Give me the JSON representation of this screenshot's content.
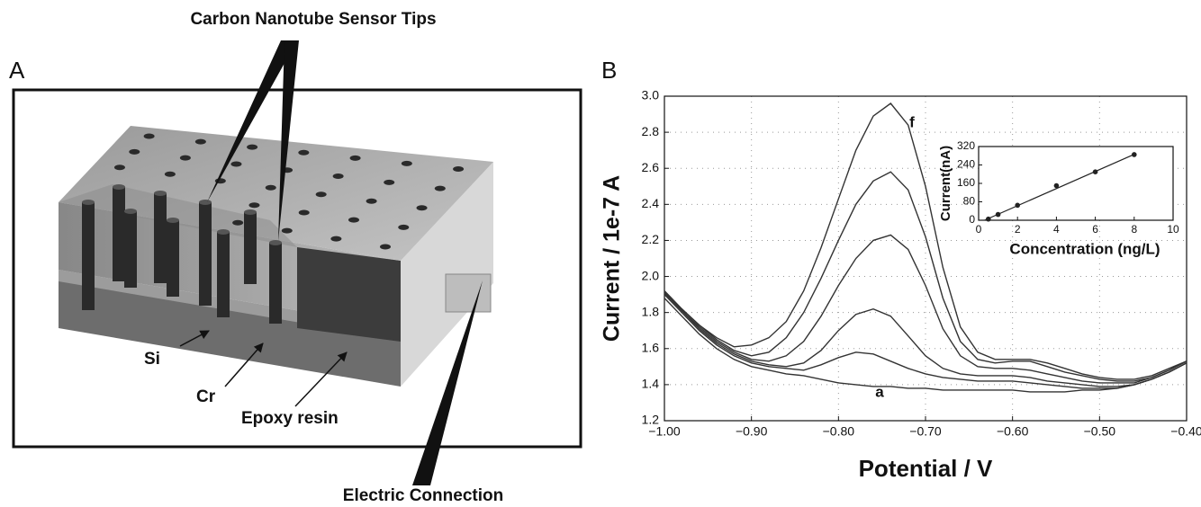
{
  "panel_a": {
    "label": "A",
    "title": "Carbon Nanotube Sensor Tips",
    "labels": [
      "Si",
      "Cr",
      "Epoxy resin"
    ],
    "connection": "Electric Connection"
  },
  "chart_data": [
    {
      "type": "line",
      "panel": "B",
      "xlabel": "Potential / V",
      "ylabel": "Current / 1e-7 A",
      "x": [
        -1,
        -0.98,
        -0.96,
        -0.94,
        -0.92,
        -0.9,
        -0.88,
        -0.86,
        -0.84,
        -0.82,
        -0.8,
        -0.78,
        -0.76,
        -0.74,
        -0.72,
        -0.7,
        -0.68,
        -0.66,
        -0.64,
        -0.62,
        -0.6,
        -0.58,
        -0.56,
        -0.54,
        -0.52,
        -0.5,
        -0.48,
        -0.46,
        -0.44,
        -0.42,
        -0.4
      ],
      "series": [
        {
          "color": "#333333",
          "values": [
            1.88,
            1.78,
            1.68,
            1.6,
            1.54,
            1.5,
            1.48,
            1.46,
            1.45,
            1.43,
            1.41,
            1.4,
            1.39,
            1.39,
            1.38,
            1.38,
            1.37,
            1.37,
            1.37,
            1.37,
            1.37,
            1.36,
            1.36,
            1.36,
            1.37,
            1.37,
            1.38,
            1.4,
            1.43,
            1.47,
            1.52
          ]
        },
        {
          "color": "#333333",
          "values": [
            1.9,
            1.8,
            1.7,
            1.62,
            1.56,
            1.52,
            1.5,
            1.49,
            1.48,
            1.51,
            1.55,
            1.58,
            1.57,
            1.53,
            1.49,
            1.46,
            1.44,
            1.43,
            1.42,
            1.42,
            1.42,
            1.41,
            1.4,
            1.39,
            1.38,
            1.38,
            1.38,
            1.4,
            1.43,
            1.47,
            1.52
          ]
        },
        {
          "color": "#333333",
          "values": [
            1.91,
            1.81,
            1.71,
            1.63,
            1.57,
            1.53,
            1.51,
            1.5,
            1.52,
            1.59,
            1.7,
            1.79,
            1.82,
            1.78,
            1.67,
            1.56,
            1.49,
            1.46,
            1.45,
            1.45,
            1.45,
            1.44,
            1.42,
            1.41,
            1.4,
            1.39,
            1.39,
            1.4,
            1.43,
            1.47,
            1.52
          ]
        },
        {
          "color": "#333333",
          "values": [
            1.91,
            1.81,
            1.72,
            1.64,
            1.58,
            1.54,
            1.53,
            1.56,
            1.64,
            1.78,
            1.95,
            2.1,
            2.2,
            2.23,
            2.15,
            1.95,
            1.71,
            1.56,
            1.5,
            1.49,
            1.49,
            1.48,
            1.46,
            1.44,
            1.42,
            1.41,
            1.41,
            1.41,
            1.44,
            1.48,
            1.53
          ]
        },
        {
          "color": "#333333",
          "values": [
            1.92,
            1.82,
            1.73,
            1.65,
            1.59,
            1.56,
            1.58,
            1.66,
            1.8,
            1.99,
            2.2,
            2.4,
            2.53,
            2.58,
            2.48,
            2.22,
            1.88,
            1.64,
            1.54,
            1.52,
            1.53,
            1.53,
            1.5,
            1.47,
            1.45,
            1.43,
            1.42,
            1.42,
            1.44,
            1.48,
            1.53
          ]
        },
        {
          "color": "#333333",
          "values": [
            1.92,
            1.82,
            1.73,
            1.66,
            1.61,
            1.62,
            1.66,
            1.75,
            1.92,
            2.16,
            2.43,
            2.7,
            2.89,
            2.96,
            2.84,
            2.5,
            2.05,
            1.72,
            1.58,
            1.54,
            1.54,
            1.54,
            1.52,
            1.49,
            1.46,
            1.44,
            1.43,
            1.43,
            1.45,
            1.49,
            1.53
          ]
        }
      ],
      "annotations": [
        "a",
        "f"
      ],
      "xlim": [
        -1,
        -0.4
      ],
      "xticks": [
        {
          "value": -1,
          "label": "−1.00"
        },
        {
          "value": -0.9,
          "label": "−0.90"
        },
        {
          "value": -0.8,
          "label": "−0.80"
        },
        {
          "value": -0.7,
          "label": "−0.70"
        },
        {
          "value": -0.6,
          "label": "−0.60"
        },
        {
          "value": -0.5,
          "label": "−0.50"
        },
        {
          "value": -0.4,
          "label": "−0.40"
        }
      ],
      "ylim": [
        1.2,
        3.0
      ],
      "yticks": [
        1.2,
        1.4,
        1.6,
        1.8,
        {
          "value": 2,
          "label": "2.0"
        },
        2.2,
        2.4,
        2.6,
        2.8,
        {
          "value": 3,
          "label": "3.0"
        }
      ],
      "grid": true
    },
    {
      "type": "scatter",
      "xlabel": "Concentration (ng/L)",
      "ylabel": "Current(nA)",
      "x": [
        0.5,
        1,
        2,
        4,
        6,
        8
      ],
      "values": [
        5,
        25,
        65,
        150,
        210,
        285
      ],
      "fit": {
        "x": [
          0.3,
          8
        ],
        "values": [
          0,
          286
        ]
      },
      "color": "#222222",
      "xlim": [
        0,
        10
      ],
      "xticks": [
        0,
        2,
        4,
        6,
        8,
        10
      ],
      "ylim": [
        0,
        320
      ],
      "yticks": [
        0,
        80,
        160,
        240,
        320
      ]
    }
  ]
}
